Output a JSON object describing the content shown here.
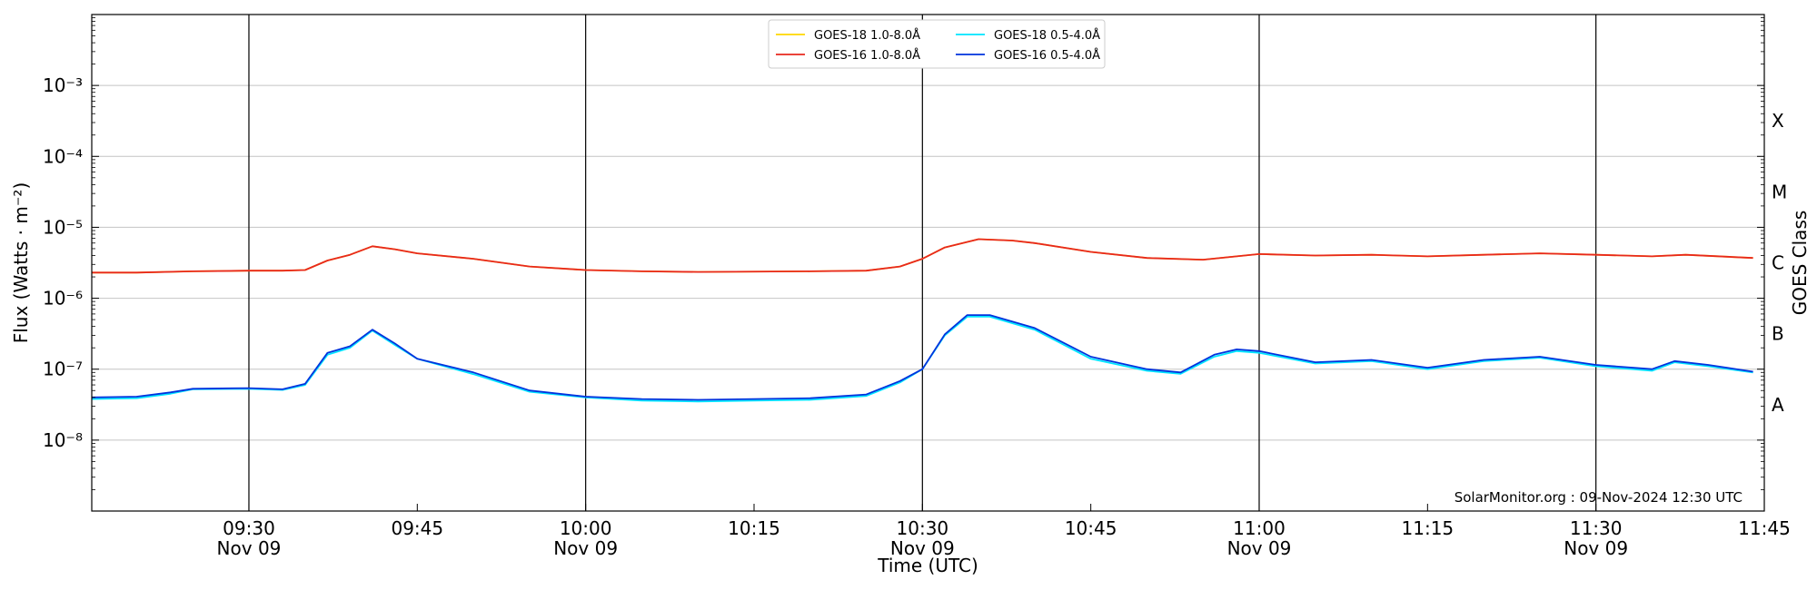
{
  "chart_data": {
    "type": "line",
    "xlabel": "Time (UTC)",
    "ylabel": "Flux (Watts · m⁻²)",
    "ylabel_right": "GOES Class",
    "x_range": [
      "09:16",
      "11:45"
    ],
    "ylim": [
      1e-09,
      0.01
    ],
    "yscale": "log",
    "y_ticks": [
      {
        "value": 1e-08,
        "label": "10⁻⁸"
      },
      {
        "value": 1e-07,
        "label": "10⁻⁷"
      },
      {
        "value": 1e-06,
        "label": "10⁻⁶"
      },
      {
        "value": 1e-05,
        "label": "10⁻⁵"
      },
      {
        "value": 0.0001,
        "label": "10⁻⁴"
      },
      {
        "value": 0.001,
        "label": "10⁻³"
      }
    ],
    "x_ticks": [
      {
        "time": "09:30",
        "label": "09:30",
        "sublabel": "Nov 09"
      },
      {
        "time": "09:45",
        "label": "09:45",
        "sublabel": ""
      },
      {
        "time": "10:00",
        "label": "10:00",
        "sublabel": "Nov 09"
      },
      {
        "time": "10:15",
        "label": "10:15",
        "sublabel": ""
      },
      {
        "time": "10:30",
        "label": "10:30",
        "sublabel": "Nov 09"
      },
      {
        "time": "10:45",
        "label": "10:45",
        "sublabel": ""
      },
      {
        "time": "11:00",
        "label": "11:00",
        "sublabel": "Nov 09"
      },
      {
        "time": "11:15",
        "label": "11:15",
        "sublabel": ""
      },
      {
        "time": "11:30",
        "label": "11:30",
        "sublabel": "Nov 09"
      },
      {
        "time": "11:45",
        "label": "11:45",
        "sublabel": ""
      }
    ],
    "vertical_lines": [
      "09:30",
      "10:00",
      "10:30",
      "11:00",
      "11:30"
    ],
    "goes_classes": [
      {
        "label": "A",
        "value": 3.16e-08
      },
      {
        "label": "B",
        "value": 3.16e-07
      },
      {
        "label": "C",
        "value": 3.16e-06
      },
      {
        "label": "M",
        "value": 3.16e-05
      },
      {
        "label": "X",
        "value": 0.000316
      }
    ],
    "grid": true,
    "legend_position": "top-center",
    "series": [
      {
        "name": "GOES-18 1.0-8.0Å",
        "color": "#FFD700",
        "points": [
          [
            "09:16",
            2.3e-06
          ],
          [
            "09:20",
            2.3e-06
          ],
          [
            "09:25",
            2.4e-06
          ],
          [
            "09:30",
            2.45e-06
          ],
          [
            "09:33",
            2.45e-06
          ],
          [
            "09:35",
            2.5e-06
          ],
          [
            "09:37",
            3.4e-06
          ],
          [
            "09:39",
            4.1e-06
          ],
          [
            "09:41",
            5.4e-06
          ],
          [
            "09:43",
            4.9e-06
          ],
          [
            "09:45",
            4.3e-06
          ],
          [
            "09:50",
            3.6e-06
          ],
          [
            "09:55",
            2.8e-06
          ],
          [
            "10:00",
            2.5e-06
          ],
          [
            "10:05",
            2.4e-06
          ],
          [
            "10:10",
            2.35e-06
          ],
          [
            "10:20",
            2.4e-06
          ],
          [
            "10:25",
            2.45e-06
          ],
          [
            "10:28",
            2.8e-06
          ],
          [
            "10:30",
            3.6e-06
          ],
          [
            "10:32",
            5.2e-06
          ],
          [
            "10:35",
            6.8e-06
          ],
          [
            "10:38",
            6.5e-06
          ],
          [
            "10:40",
            6e-06
          ],
          [
            "10:45",
            4.5e-06
          ],
          [
            "10:50",
            3.7e-06
          ],
          [
            "10:55",
            3.5e-06
          ],
          [
            "11:00",
            4.2e-06
          ],
          [
            "11:05",
            4e-06
          ],
          [
            "11:10",
            4.1e-06
          ],
          [
            "11:15",
            3.9e-06
          ],
          [
            "11:20",
            4.1e-06
          ],
          [
            "11:25",
            4.3e-06
          ],
          [
            "11:30",
            4.1e-06
          ],
          [
            "11:35",
            3.9e-06
          ],
          [
            "11:38",
            4.1e-06
          ],
          [
            "11:44",
            3.7e-06
          ]
        ]
      },
      {
        "name": "GOES-16 1.0-8.0Å",
        "color": "#E8281E",
        "points": [
          [
            "09:16",
            2.3e-06
          ],
          [
            "09:20",
            2.3e-06
          ],
          [
            "09:25",
            2.4e-06
          ],
          [
            "09:30",
            2.45e-06
          ],
          [
            "09:33",
            2.45e-06
          ],
          [
            "09:35",
            2.5e-06
          ],
          [
            "09:37",
            3.4e-06
          ],
          [
            "09:39",
            4.1e-06
          ],
          [
            "09:41",
            5.4e-06
          ],
          [
            "09:43",
            4.9e-06
          ],
          [
            "09:45",
            4.3e-06
          ],
          [
            "09:50",
            3.6e-06
          ],
          [
            "09:55",
            2.8e-06
          ],
          [
            "10:00",
            2.5e-06
          ],
          [
            "10:05",
            2.4e-06
          ],
          [
            "10:10",
            2.35e-06
          ],
          [
            "10:20",
            2.4e-06
          ],
          [
            "10:25",
            2.45e-06
          ],
          [
            "10:28",
            2.8e-06
          ],
          [
            "10:30",
            3.6e-06
          ],
          [
            "10:32",
            5.2e-06
          ],
          [
            "10:35",
            6.8e-06
          ],
          [
            "10:38",
            6.5e-06
          ],
          [
            "10:40",
            6e-06
          ],
          [
            "10:45",
            4.5e-06
          ],
          [
            "10:50",
            3.7e-06
          ],
          [
            "10:55",
            3.5e-06
          ],
          [
            "11:00",
            4.2e-06
          ],
          [
            "11:05",
            4e-06
          ],
          [
            "11:10",
            4.1e-06
          ],
          [
            "11:15",
            3.9e-06
          ],
          [
            "11:20",
            4.1e-06
          ],
          [
            "11:25",
            4.3e-06
          ],
          [
            "11:30",
            4.1e-06
          ],
          [
            "11:35",
            3.9e-06
          ],
          [
            "11:38",
            4.1e-06
          ],
          [
            "11:44",
            3.7e-06
          ]
        ]
      },
      {
        "name": "GOES-18 0.5-4.0Å",
        "color": "#00E5FF",
        "points": [
          [
            "09:16",
            3.8e-08
          ],
          [
            "09:20",
            3.9e-08
          ],
          [
            "09:23",
            4.5e-08
          ],
          [
            "09:25",
            5.2e-08
          ],
          [
            "09:30",
            5.3e-08
          ],
          [
            "09:33",
            5.1e-08
          ],
          [
            "09:35",
            6e-08
          ],
          [
            "09:37",
            1.6e-07
          ],
          [
            "09:39",
            2e-07
          ],
          [
            "09:41",
            3.5e-07
          ],
          [
            "09:43",
            2.2e-07
          ],
          [
            "09:45",
            1.4e-07
          ],
          [
            "09:50",
            8.5e-08
          ],
          [
            "09:55",
            4.8e-08
          ],
          [
            "10:00",
            4e-08
          ],
          [
            "10:05",
            3.6e-08
          ],
          [
            "10:10",
            3.5e-08
          ],
          [
            "10:15",
            3.6e-08
          ],
          [
            "10:20",
            3.7e-08
          ],
          [
            "10:25",
            4.2e-08
          ],
          [
            "10:28",
            6.5e-08
          ],
          [
            "10:30",
            1e-07
          ],
          [
            "10:32",
            3e-07
          ],
          [
            "10:34",
            5.5e-07
          ],
          [
            "10:36",
            5.5e-07
          ],
          [
            "10:40",
            3.6e-07
          ],
          [
            "10:45",
            1.4e-07
          ],
          [
            "10:50",
            9.5e-08
          ],
          [
            "10:53",
            8.6e-08
          ],
          [
            "10:56",
            1.5e-07
          ],
          [
            "10:58",
            1.8e-07
          ],
          [
            "11:00",
            1.7e-07
          ],
          [
            "11:05",
            1.2e-07
          ],
          [
            "11:10",
            1.3e-07
          ],
          [
            "11:15",
            1e-07
          ],
          [
            "11:20",
            1.3e-07
          ],
          [
            "11:25",
            1.45e-07
          ],
          [
            "11:30",
            1.1e-07
          ],
          [
            "11:35",
            9.5e-08
          ],
          [
            "11:37",
            1.25e-07
          ],
          [
            "11:40",
            1.1e-07
          ],
          [
            "11:44",
            9e-08
          ]
        ]
      },
      {
        "name": "GOES-16 0.5-4.0Å",
        "color": "#0033DD",
        "points": [
          [
            "09:16",
            4e-08
          ],
          [
            "09:20",
            4.1e-08
          ],
          [
            "09:23",
            4.7e-08
          ],
          [
            "09:25",
            5.3e-08
          ],
          [
            "09:30",
            5.4e-08
          ],
          [
            "09:33",
            5.2e-08
          ],
          [
            "09:35",
            6.2e-08
          ],
          [
            "09:37",
            1.7e-07
          ],
          [
            "09:39",
            2.1e-07
          ],
          [
            "09:41",
            3.6e-07
          ],
          [
            "09:43",
            2.3e-07
          ],
          [
            "09:45",
            1.4e-07
          ],
          [
            "09:50",
            9e-08
          ],
          [
            "09:55",
            5e-08
          ],
          [
            "10:00",
            4.1e-08
          ],
          [
            "10:05",
            3.8e-08
          ],
          [
            "10:10",
            3.7e-08
          ],
          [
            "10:15",
            3.8e-08
          ],
          [
            "10:20",
            3.9e-08
          ],
          [
            "10:25",
            4.4e-08
          ],
          [
            "10:28",
            6.8e-08
          ],
          [
            "10:30",
            1e-07
          ],
          [
            "10:32",
            3.1e-07
          ],
          [
            "10:34",
            5.8e-07
          ],
          [
            "10:36",
            5.8e-07
          ],
          [
            "10:40",
            3.8e-07
          ],
          [
            "10:45",
            1.5e-07
          ],
          [
            "10:50",
            1e-07
          ],
          [
            "10:53",
            9e-08
          ],
          [
            "10:56",
            1.6e-07
          ],
          [
            "10:58",
            1.9e-07
          ],
          [
            "11:00",
            1.8e-07
          ],
          [
            "11:05",
            1.25e-07
          ],
          [
            "11:10",
            1.35e-07
          ],
          [
            "11:15",
            1.05e-07
          ],
          [
            "11:20",
            1.35e-07
          ],
          [
            "11:25",
            1.5e-07
          ],
          [
            "11:30",
            1.15e-07
          ],
          [
            "11:35",
            1e-07
          ],
          [
            "11:37",
            1.3e-07
          ],
          [
            "11:40",
            1.15e-07
          ],
          [
            "11:44",
            9.2e-08
          ]
        ]
      }
    ],
    "annotation": "SolarMonitor.org : 09-Nov-2024 12:30 UTC"
  }
}
